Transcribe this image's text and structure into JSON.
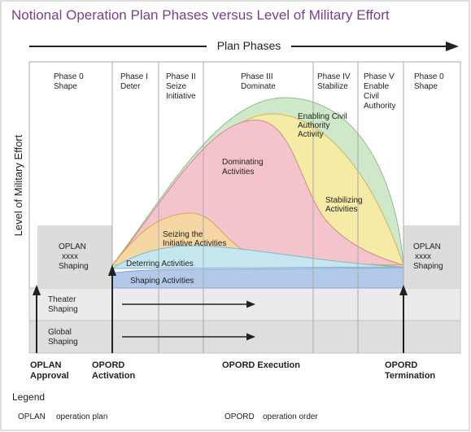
{
  "title": "Notional Operation Plan Phases versus Level of Military Effort",
  "plan_phases": "Plan Phases",
  "y_axis": "Level of Military Effort",
  "phases": [
    {
      "lines": [
        "Phase 0",
        "Shape"
      ]
    },
    {
      "lines": [
        "Phase I",
        "Deter"
      ]
    },
    {
      "lines": [
        "Phase II",
        "Seize",
        "Initiative"
      ]
    },
    {
      "lines": [
        "Phase III",
        "Dominate"
      ]
    },
    {
      "lines": [
        "Phase IV",
        "Stabilize"
      ]
    },
    {
      "lines": [
        "Phase V",
        "Enable",
        "Civil",
        "Authority"
      ]
    },
    {
      "lines": [
        "Phase 0",
        "Shape"
      ]
    }
  ],
  "oplan_left": [
    "OPLAN",
    "xxxx",
    "Shaping"
  ],
  "oplan_right": [
    "OPLAN",
    "xxxx",
    "Shaping"
  ],
  "activities": {
    "enabling": [
      "Enabling Civil",
      "Authority",
      "Activity"
    ],
    "dominating": [
      "Dominating",
      "Activities"
    ],
    "stabilizing": [
      "Stabilizing",
      "Activities"
    ],
    "seizing": [
      "Seizing the",
      "Initiative Activities"
    ],
    "deterring": "Deterring Activities",
    "shaping": "Shaping Activities"
  },
  "theater": [
    "Theater",
    "Shaping"
  ],
  "global": [
    "Global",
    "Shaping"
  ],
  "milestones": {
    "oplan_approval": [
      "OPLAN",
      "Approval"
    ],
    "opord_activation": [
      "OPORD",
      "Activation"
    ],
    "opord_execution": "OPORD Execution",
    "opord_termination": [
      "OPORD",
      "Termination"
    ]
  },
  "legend": {
    "title": "Legend",
    "items": [
      {
        "abbr": "OPLAN",
        "desc": "operation plan"
      },
      {
        "abbr": "OPORD",
        "desc": "operation order"
      }
    ]
  },
  "colors": {
    "title": "#7b3f8c",
    "enabling": "#cfe8c9",
    "stabilizing": "#f5eaa6",
    "dominating": "#f4c4cc",
    "seizing": "#f6d7a4",
    "deterring": "#c5e5ef",
    "shaping": "#b3c9ea",
    "gray": "#dcdcdc"
  }
}
